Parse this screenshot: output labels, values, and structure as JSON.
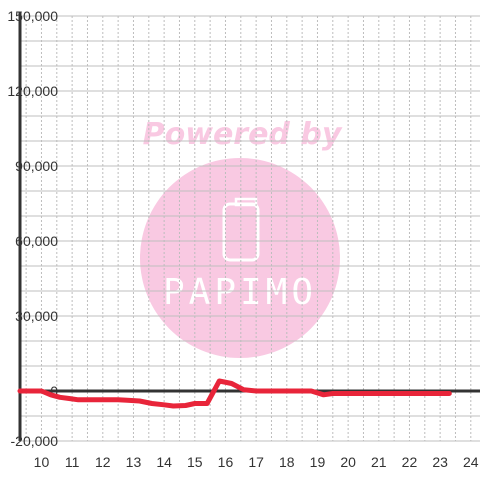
{
  "chart_data": {
    "type": "line",
    "title": "",
    "xlabel": "",
    "ylabel": "",
    "xlim": [
      9.3,
      24.3
    ],
    "ylim": [
      -20000,
      150000
    ],
    "x_ticks": [
      10,
      11,
      12,
      13,
      14,
      15,
      16,
      17,
      18,
      19,
      20,
      21,
      22,
      23,
      24
    ],
    "y_ticks": [
      -20000,
      0,
      30000,
      60000,
      90000,
      120000,
      150000
    ],
    "y_tick_labels": [
      "-20,000",
      "0",
      "30,000",
      "60,000",
      "90,000",
      "120,000",
      "150,000"
    ],
    "grid": true,
    "series": [
      {
        "color": "#e8253a",
        "x": [
          9.3,
          9.7,
          10.0,
          10.3,
          10.6,
          10.9,
          11.2,
          11.5,
          12.0,
          12.5,
          12.8,
          13.2,
          13.6,
          14.0,
          14.3,
          14.7,
          15.0,
          15.4,
          15.8,
          16.2,
          16.6,
          17.0,
          17.5,
          18.0,
          18.5,
          18.8,
          19.2,
          19.5,
          20.0,
          21.0,
          22.0,
          23.0,
          23.3
        ],
        "y": [
          0,
          0,
          0,
          -1500,
          -2500,
          -3000,
          -3500,
          -3500,
          -3500,
          -3500,
          -3700,
          -4000,
          -5000,
          -5500,
          -6000,
          -5800,
          -5000,
          -5000,
          4000,
          3000,
          500,
          0,
          0,
          0,
          0,
          0,
          -1500,
          -1000,
          -1000,
          -1000,
          -1000,
          -1000,
          -1000
        ]
      }
    ]
  },
  "watermark": {
    "caption": "Powered by",
    "brand": "PAPIMO",
    "color": "#f9c9e2"
  }
}
